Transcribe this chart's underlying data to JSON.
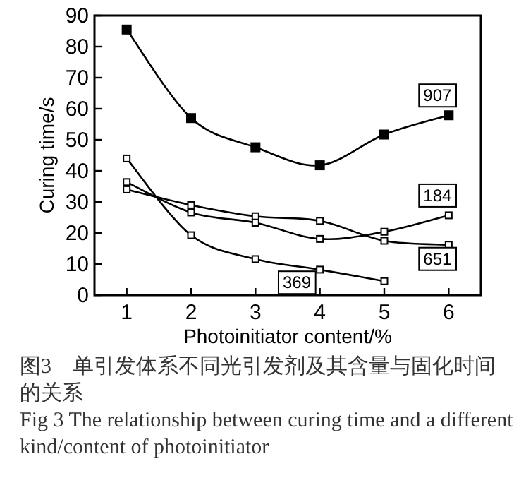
{
  "chart_data": {
    "type": "line",
    "xlabel": "Photoinitiator content/%",
    "ylabel": "Curing time/s",
    "x": [
      1,
      2,
      3,
      4,
      5,
      6
    ],
    "series": [
      {
        "name": "907",
        "color": "#000000",
        "values": [
          85.5,
          57,
          47.6,
          41.8,
          51.7,
          57.9
        ]
      },
      {
        "name": "184",
        "color": "#000000",
        "values": [
          36.4,
          26.6,
          23.3,
          18.1,
          20.4,
          25.7
        ]
      },
      {
        "name": "651",
        "color": "#000000",
        "values": [
          34,
          29,
          25.4,
          23.9,
          17.5,
          16.2
        ]
      },
      {
        "name": "369",
        "color": "#000000",
        "values": [
          44,
          19.3,
          11.6,
          8.2,
          4.5,
          null
        ]
      }
    ],
    "xlim": [
      0.5,
      6.5
    ],
    "xticks": [
      1,
      2,
      3,
      4,
      5,
      6
    ],
    "ylim": [
      0,
      90
    ],
    "yticks": [
      0,
      10,
      20,
      30,
      40,
      50,
      60,
      70,
      80,
      90
    ],
    "grid": false,
    "marker": "square",
    "line_style": "solid",
    "annotations": [
      "图3　单引发体系不同光引发剂及其含量与固化时间的关系",
      "Fig 3 The relationship between curing time and a different kind/content of photoinitiator"
    ]
  }
}
